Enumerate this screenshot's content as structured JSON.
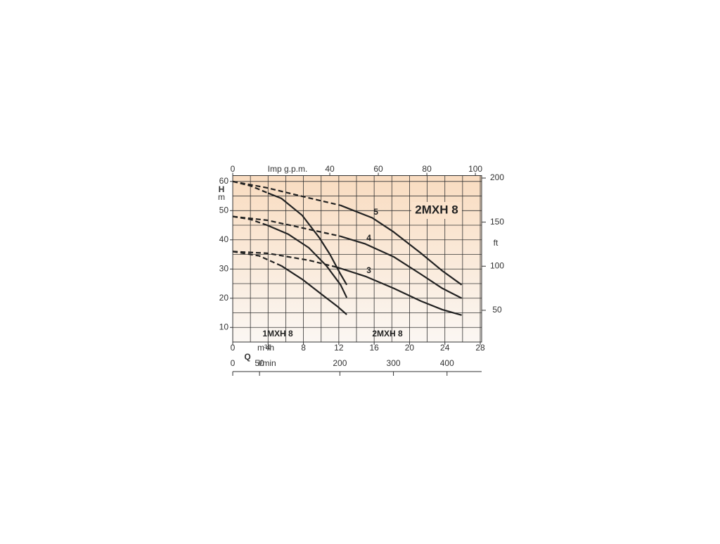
{
  "chart_data": {
    "type": "line",
    "title": "2MXH 8",
    "group_labels": [
      "1MXH 8",
      "2MXH 8"
    ],
    "y_label_symbol": "H",
    "y_label_unit": "m",
    "y2_label": "ft",
    "x_label_symbol": "Q",
    "x_label": "m³/h",
    "top_x_label": "Imp g.p.m.",
    "bottom_x_label": "l/min",
    "xlim": [
      0,
      28
    ],
    "xticks": [
      0,
      4,
      8,
      12,
      16,
      20,
      24,
      28
    ],
    "xgrid": [
      0,
      2,
      4,
      6,
      8,
      10,
      12,
      14,
      16,
      18,
      20,
      22,
      24,
      26,
      28
    ],
    "ylim": [
      5,
      62
    ],
    "yticks": [
      10,
      20,
      30,
      40,
      50,
      60
    ],
    "ygrid": [
      10,
      15,
      20,
      25,
      30,
      35,
      40,
      45,
      50,
      55,
      60
    ],
    "y2lim": [
      14,
      202.8
    ],
    "y2ticks": [
      50,
      100,
      150,
      200
    ],
    "top_xlim": [
      0,
      102
    ],
    "top_xticks": [
      0,
      40,
      60,
      80,
      100
    ],
    "bottom_xlim": [
      0,
      462
    ],
    "bottom_xticks": [
      0,
      50,
      200,
      300,
      400
    ],
    "line_color": "#222222",
    "series": [
      {
        "group": 0,
        "style": "dashed",
        "x": [
          0,
          2,
          4
        ],
        "values": [
          60,
          58.5,
          56
        ]
      },
      {
        "group": 0,
        "style": "solid",
        "x": [
          4,
          5.5,
          7.85,
          9.8,
          11,
          12.2,
          12.9
        ],
        "values": [
          56,
          54.2,
          48.4,
          40.7,
          35,
          28.2,
          24.6
        ]
      },
      {
        "group": 0,
        "style": "dashed",
        "x": [
          0,
          2,
          3.9
        ],
        "values": [
          48,
          47,
          45
        ]
      },
      {
        "group": 0,
        "style": "solid",
        "x": [
          3.9,
          6.3,
          8.6,
          10.6,
          12.2,
          12.9
        ],
        "values": [
          45,
          41.9,
          37.3,
          31.1,
          24.6,
          20.2
        ]
      },
      {
        "group": 0,
        "style": "dashed",
        "x": [
          0,
          3,
          5.5
        ],
        "values": [
          36,
          34.5,
          31.1
        ]
      },
      {
        "group": 0,
        "style": "solid",
        "x": [
          5.5,
          7.85,
          10.2,
          11.8,
          12.9
        ],
        "values": [
          31.1,
          26.5,
          21,
          17.3,
          14.4
        ]
      },
      {
        "group": 1,
        "style": "dashed",
        "x": [
          0,
          3.9,
          7.85,
          12.2
        ],
        "values": [
          60,
          57.8,
          54.9,
          51.8
        ]
      },
      {
        "group": 1,
        "style": "solid",
        "label": "5",
        "x": [
          12.2,
          15.8,
          18.2,
          21.3,
          23.7,
          25.9
        ],
        "values": [
          51.8,
          47.5,
          42.7,
          35.4,
          29.4,
          24.6
        ]
      },
      {
        "group": 1,
        "style": "dashed",
        "x": [
          0,
          3.9,
          8.6,
          12.2
        ],
        "values": [
          48,
          46.7,
          43.6,
          41.2
        ]
      },
      {
        "group": 1,
        "style": "solid",
        "label": "4",
        "x": [
          12.2,
          15,
          18.2,
          21.3,
          23.7,
          25.9
        ],
        "values": [
          41.2,
          38.6,
          34.2,
          28.2,
          23.4,
          20
        ]
      },
      {
        "group": 1,
        "style": "dashed",
        "x": [
          0,
          3.9,
          8.6,
          11.8
        ],
        "values": [
          36,
          35.4,
          33,
          30.6
        ]
      },
      {
        "group": 1,
        "style": "solid",
        "label": "3",
        "x": [
          11.8,
          15,
          18.2,
          21.3,
          23.7,
          25.9
        ],
        "values": [
          30.6,
          27.5,
          23.4,
          19,
          16.1,
          14.2
        ]
      }
    ]
  }
}
